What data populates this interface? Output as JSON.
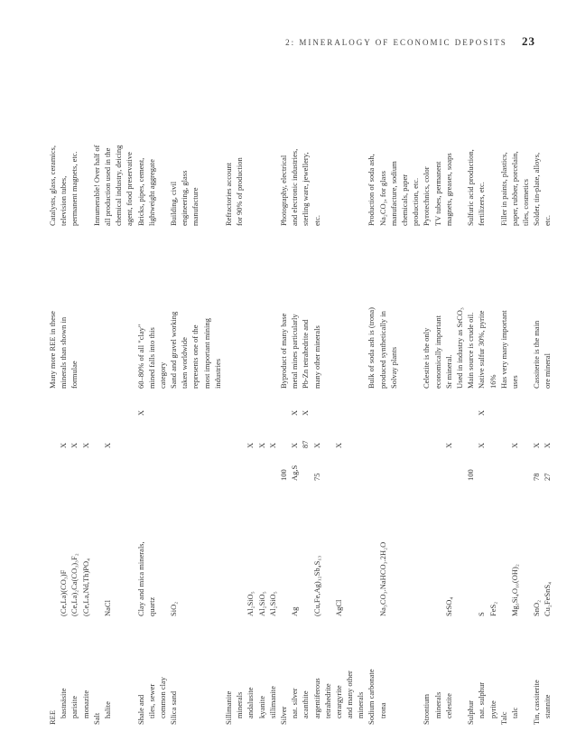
{
  "header": {
    "running": "2: MINERALOGY OF ECONOMIC DEPOSITS",
    "pagenum": "23"
  },
  "rows": [
    {
      "c1": "REE",
      "c2": "",
      "c3": "",
      "c4": "",
      "c5": "",
      "c6": "Many more REE in these",
      "c7": "Catalysts, glass, ceramics,",
      "cls": "group"
    },
    {
      "c1": "bastnäsite",
      "c2": "(Ce,La)(CO₃)F",
      "c3": "",
      "c4": "X",
      "c5": "",
      "c6": "minerals than shown in",
      "c7": "television tubes,",
      "cls": "indent"
    },
    {
      "c1": "parisite",
      "c2": "(Ce,La)₂Ca(CO₃)₃F₂",
      "c3": "",
      "c4": "X",
      "c5": "",
      "c6": "formulae",
      "c7": "permanent magnets, etc.",
      "cls": "indent"
    },
    {
      "c1": "monazite",
      "c2": "(Ce,La,Nd,Th)PO₄",
      "c3": "",
      "c4": "X",
      "c5": "",
      "c6": "",
      "c7": "",
      "cls": "indent"
    },
    {
      "c1": "Salt",
      "c2": "",
      "c3": "",
      "c4": "",
      "c5": "",
      "c6": "",
      "c7": "Innumerable! Over half of",
      "cls": "group"
    },
    {
      "c1": "halite",
      "c2": "NaCl",
      "c3": "",
      "c4": "X",
      "c5": "",
      "c6": "",
      "c7": "all production used in the",
      "cls": "indent"
    },
    {
      "c1": "",
      "c2": "",
      "c3": "",
      "c4": "",
      "c5": "",
      "c6": "",
      "c7": "chemical industry, deicing"
    },
    {
      "c1": "",
      "c2": "",
      "c3": "",
      "c4": "",
      "c5": "",
      "c6": "",
      "c7": "agent, food preservative"
    },
    {
      "c1": "Shale and",
      "c2": "Clay and mica minerals,",
      "c3": "",
      "c4": "",
      "c5": "X",
      "c6": "60–80% of all \"clay\"",
      "c7": "Bricks, pipes, cement,",
      "cls": "group"
    },
    {
      "c1": "tiles, sewer",
      "c2": "quartz",
      "c3": "",
      "c4": "",
      "c5": "",
      "c6": "mined falls into this",
      "c7": "lightweight aggregate",
      "cls": "indent"
    },
    {
      "c1": "common clay",
      "c2": "",
      "c3": "",
      "c4": "",
      "c5": "",
      "c6": "category",
      "c7": "",
      "cls": "indent"
    },
    {
      "c1": "Silica sand",
      "c2": "SiO₂",
      "c3": "",
      "c4": "",
      "c5": "",
      "c6": "Sand and gravel working",
      "c7": "Building, civil",
      "cls": "group"
    },
    {
      "c1": "",
      "c2": "",
      "c3": "",
      "c4": "",
      "c5": "",
      "c6": "taken worldwide",
      "c7": "engineering, glass"
    },
    {
      "c1": "",
      "c2": "",
      "c3": "",
      "c4": "",
      "c5": "",
      "c6": "represents one of the",
      "c7": "manufacture"
    },
    {
      "c1": "",
      "c2": "",
      "c3": "",
      "c4": "",
      "c5": "",
      "c6": "most important mining",
      "c7": ""
    },
    {
      "c1": "",
      "c2": "",
      "c3": "",
      "c4": "",
      "c5": "",
      "c6": "industries",
      "c7": ""
    },
    {
      "c1": "Sillimanite",
      "c2": "",
      "c3": "",
      "c4": "",
      "c5": "",
      "c6": "",
      "c7": "Refractories account",
      "cls": "group"
    },
    {
      "c1": "minerals",
      "c2": "",
      "c3": "",
      "c4": "",
      "c5": "",
      "c6": "",
      "c7": "for 90% of production",
      "cls": "indent"
    },
    {
      "c1": "andalusite",
      "c2": "Al₂SiO₅",
      "c3": "",
      "c4": "X",
      "c5": "",
      "c6": "",
      "c7": "",
      "cls": "indent"
    },
    {
      "c1": "kyanite",
      "c2": "Al₂SiO₅",
      "c3": "",
      "c4": "X",
      "c5": "",
      "c6": "",
      "c7": "",
      "cls": "indent"
    },
    {
      "c1": "sillimanite",
      "c2": "Al₂SiO₅",
      "c3": "",
      "c4": "X",
      "c5": "",
      "c6": "",
      "c7": "",
      "cls": "indent"
    },
    {
      "c1": "Silver",
      "c2": "",
      "c3": "100",
      "c4": "",
      "c5": "",
      "c6": "Byproduct of many base",
      "c7": "Photography, electrical",
      "cls": "group"
    },
    {
      "c1": "nat. silver",
      "c2": "Ag",
      "c3": "Ag,S",
      "c4": "X",
      "c5": "X",
      "c6": "metal mines particularly",
      "c7": "and electronic industries,",
      "cls": "indent"
    },
    {
      "c1": "acanthite",
      "c2": "",
      "c3": "",
      "c4": "87",
      "c5": "X",
      "c6": "Pb-Zn tetrahedrite and",
      "c7": "sterling ware, jewellery,",
      "cls": "indent"
    },
    {
      "c1": "argentiferous",
      "c2": "(Cu,Fe,Ag)₁₂Sb₄S₁₃",
      "c3": "75",
      "c4": "X",
      "c5": "",
      "c6": "many other minerals",
      "c7": "etc.",
      "cls": "indent"
    },
    {
      "c1": "tetrahedrite",
      "c2": "",
      "c3": "",
      "c4": "",
      "c5": "",
      "c6": "",
      "c7": "",
      "cls": "indent"
    },
    {
      "c1": "cerargyrite",
      "c2": "AgCl",
      "c3": "",
      "c4": "X",
      "c5": "",
      "c6": "",
      "c7": "",
      "cls": "indent"
    },
    {
      "c1": "and many other",
      "c2": "",
      "c3": "",
      "c4": "",
      "c5": "",
      "c6": "",
      "c7": "",
      "cls": "indent"
    },
    {
      "c1": "minerals",
      "c2": "",
      "c3": "",
      "c4": "",
      "c5": "",
      "c6": "",
      "c7": "",
      "cls": "indent"
    },
    {
      "c1": "Sodium carbonate",
      "c2": "",
      "c3": "",
      "c4": "",
      "c5": "",
      "c6": "Bulk of soda ash is (trona)",
      "c7": "Production of soda ash,",
      "cls": "group"
    },
    {
      "c1": "trona",
      "c2": "Na₃CO₃.NaHCO₃.2H₂O",
      "c3": "",
      "c4": "",
      "c5": "",
      "c6": "produced synthetically in",
      "c7": "Na₂CO₃, for glass",
      "cls": "indent"
    },
    {
      "c1": "",
      "c2": "",
      "c3": "",
      "c4": "",
      "c5": "",
      "c6": "Solvay plants",
      "c7": "manufacture, sodium"
    },
    {
      "c1": "",
      "c2": "",
      "c3": "",
      "c4": "",
      "c5": "",
      "c6": "",
      "c7": "chemicals, paper"
    },
    {
      "c1": "",
      "c2": "",
      "c3": "",
      "c4": "",
      "c5": "",
      "c6": "",
      "c7": "production, etc."
    },
    {
      "c1": "Strontium",
      "c2": "",
      "c3": "",
      "c4": "",
      "c5": "",
      "c6": "Celestite is the only",
      "c7": "Pyrotechnics, color",
      "cls": "group"
    },
    {
      "c1": "minerals",
      "c2": "",
      "c3": "",
      "c4": "",
      "c5": "",
      "c6": "economically important",
      "c7": "TV tubes, permanent",
      "cls": "indent"
    },
    {
      "c1": "celestite",
      "c2": "SrSO₄",
      "c3": "",
      "c4": "X",
      "c5": "",
      "c6": "Sr mineral.",
      "c7": "magnets, greases, soaps",
      "cls": "indent"
    },
    {
      "c1": "",
      "c2": "",
      "c3": "",
      "c4": "",
      "c5": "",
      "c6": "Used in industry as SrCO₃",
      "c7": ""
    },
    {
      "c1": "Sulphur",
      "c2": "",
      "c3": "100",
      "c4": "",
      "c5": "",
      "c6": "Main source is crude oil.",
      "c7": "Sulfuric acid production,",
      "cls": "group"
    },
    {
      "c1": "nat. sulphur",
      "c2": "S",
      "c3": "",
      "c4": "X",
      "c5": "X",
      "c6": "Native sulfur 30%, pyrite",
      "c7": "fertilizers, etc.",
      "cls": "indent"
    },
    {
      "c1": "pyrite",
      "c2": "FeS₂",
      "c3": "",
      "c4": "",
      "c5": "",
      "c6": "16%",
      "c7": "",
      "cls": "indent"
    },
    {
      "c1": "Talc",
      "c2": "",
      "c3": "",
      "c4": "",
      "c5": "",
      "c6": "Has very many important",
      "c7": "Filler in paints, plastics,",
      "cls": "group"
    },
    {
      "c1": "talc",
      "c2": "Mg₃Si₄O₁₀(OH)₂",
      "c3": "",
      "c4": "X",
      "c5": "",
      "c6": "uses",
      "c7": "paper, rubber, porcelain,",
      "cls": "indent"
    },
    {
      "c1": "",
      "c2": "",
      "c3": "",
      "c4": "",
      "c5": "",
      "c6": "",
      "c7": "tiles, cosmetics"
    },
    {
      "c1": "Tin, cassiterite",
      "c2": "SnO₂",
      "c3": "78",
      "c4": "X",
      "c5": "",
      "c6": "Cassiterite is the main",
      "c7": "Solder, tin-plate, alloys,",
      "cls": "group"
    },
    {
      "c1": "stannite",
      "c2": "Cu₂FeSnS₄",
      "c3": "27",
      "c4": "X",
      "c5": "",
      "c6": "ore mineral",
      "c7": "etc.",
      "cls": "indent"
    }
  ]
}
